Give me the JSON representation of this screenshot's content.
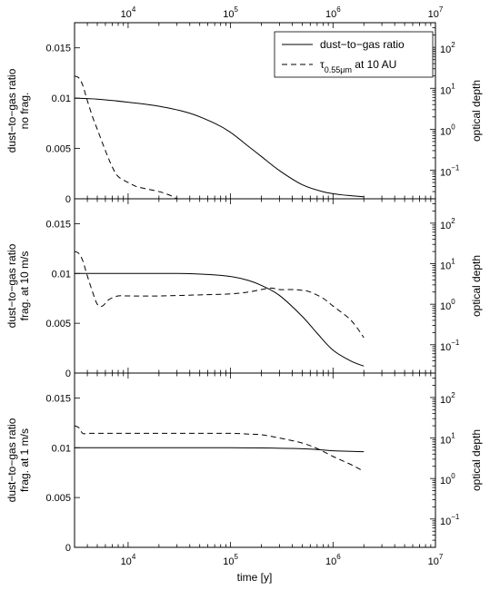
{
  "chart_data": {
    "type": "line",
    "x_axis": {
      "label": "time [y]",
      "scale": "log",
      "range": [
        3000,
        10000000
      ],
      "tick_labels": [
        {
          "value": 10000,
          "base": "10",
          "exp": "4"
        },
        {
          "value": 100000,
          "base": "10",
          "exp": "5"
        },
        {
          "value": 1000000,
          "base": "10",
          "exp": "6"
        },
        {
          "value": 10000000,
          "base": "10",
          "exp": "7"
        }
      ]
    },
    "left_axis": {
      "range": [
        0,
        0.0175
      ],
      "ticks": [
        0,
        0.005,
        0.01,
        0.015
      ],
      "tick_labels": [
        "0",
        "0.005",
        "0.01",
        "0.015"
      ]
    },
    "right_axis": {
      "label": "optical depth",
      "scale": "log",
      "range": [
        0.02,
        400
      ],
      "tick_labels": [
        {
          "value": 0.1,
          "base": "10",
          "exp": "−1"
        },
        {
          "value": 1,
          "base": "10",
          "exp": "0"
        },
        {
          "value": 10,
          "base": "10",
          "exp": "1"
        },
        {
          "value": 100,
          "base": "10",
          "exp": "2"
        }
      ]
    },
    "legend": {
      "placement": "top-right",
      "entries": [
        {
          "style": "solid",
          "text": "dust−to−gas ratio",
          "sub": ""
        },
        {
          "style": "dashed",
          "text": "τ",
          "sub": "0.55μm",
          "suffix": " at 10 AU"
        }
      ]
    },
    "panels": [
      {
        "ylabel_line1": "dust−to−gas ratio",
        "ylabel_line2": "no frag.",
        "series": [
          {
            "style": "solid",
            "axis": "left",
            "x": [
              3000,
              5000,
              10000,
              20000,
              40000,
              70000,
              100000,
              150000,
              200000,
              300000,
              500000,
              800000,
              1200000,
              2000000
            ],
            "y": [
              0.01,
              0.0099,
              0.0096,
              0.0092,
              0.0085,
              0.0075,
              0.0066,
              0.0052,
              0.0042,
              0.0028,
              0.0014,
              0.0007,
              0.0004,
              0.0002
            ]
          },
          {
            "style": "dashed",
            "axis": "right",
            "x": [
              3000,
              3300,
              3600,
              4000,
              4500,
              5000,
              6000,
              7000,
              8000,
              10000,
              12000,
              15000,
              20000,
              25000,
              30000
            ],
            "y": [
              20,
              18,
              12,
              5,
              2,
              1,
              0.3,
              0.12,
              0.07,
              0.05,
              0.04,
              0.035,
              0.03,
              0.025,
              0.02
            ]
          }
        ]
      },
      {
        "ylabel_line1": "dust−to−gas ratio",
        "ylabel_line2": "frag. at 10 m/s",
        "series": [
          {
            "style": "solid",
            "axis": "left",
            "x": [
              3000,
              10000,
              30000,
              60000,
              100000,
              150000,
              200000,
              300000,
              500000,
              700000,
              1000000,
              1500000,
              2000000
            ],
            "y": [
              0.01,
              0.01,
              0.01,
              0.0099,
              0.0097,
              0.0093,
              0.0088,
              0.0078,
              0.0057,
              0.004,
              0.0023,
              0.0012,
              0.0007
            ]
          },
          {
            "style": "dashed",
            "axis": "right",
            "x": [
              3000,
              3300,
              3600,
              4000,
              4500,
              5000,
              5600,
              6500,
              8000,
              10000,
              20000,
              50000,
              100000,
              150000,
              200000,
              250000,
              300000,
              400000,
              500000,
              600000,
              800000,
              1000000,
              1500000,
              2000000
            ],
            "y": [
              20,
              18,
              12,
              5,
              2,
              1,
              0.9,
              1.3,
              1.6,
              1.6,
              1.6,
              1.7,
              1.8,
              2,
              2.3,
              2.5,
              2.3,
              2.3,
              2.2,
              2.0,
              1.4,
              0.9,
              0.4,
              0.15
            ]
          }
        ]
      },
      {
        "ylabel_line1": "dust−to−gas ratio",
        "ylabel_line2": "frag. at 1 m/s",
        "series": [
          {
            "style": "solid",
            "axis": "left",
            "x": [
              3000,
              10000,
              100000,
              500000,
              1000000,
              2000000
            ],
            "y": [
              0.01,
              0.01,
              0.01,
              0.0099,
              0.0097,
              0.0096
            ]
          },
          {
            "style": "dashed",
            "axis": "right",
            "x": [
              3000,
              3300,
              3600,
              4000,
              4500,
              6000,
              10000,
              30000,
              100000,
              150000,
              200000,
              300000,
              500000,
              700000,
              1000000,
              1500000,
              2000000
            ],
            "y": [
              20,
              18,
              13,
              13,
              13,
              13,
              13,
              13,
              13,
              12.5,
              12,
              10,
              7.5,
              5.5,
              3.5,
              2.2,
              1.5
            ]
          }
        ]
      }
    ]
  }
}
